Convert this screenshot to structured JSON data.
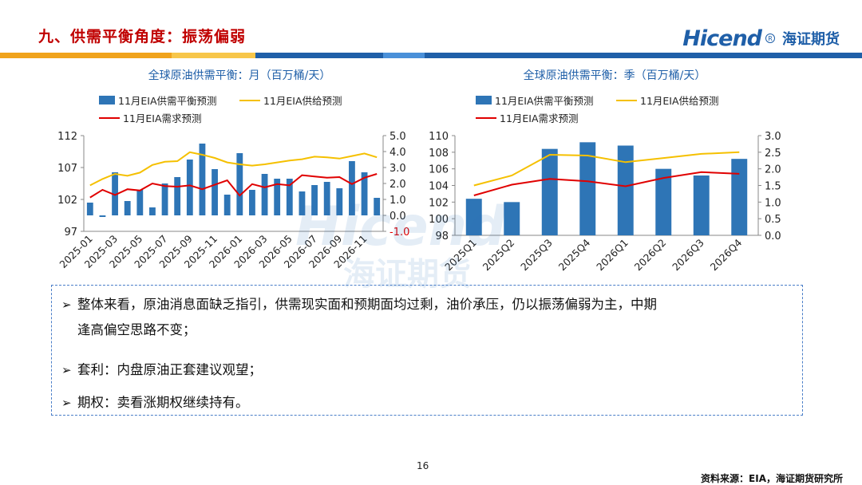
{
  "slide": {
    "title": "九、供需平衡角度：振荡偏弱",
    "logo_text": "Hicend",
    "logo_cn": "海证期货",
    "page_number": "16",
    "source": "资料来源：EIA，海证期货研究所",
    "header_colors": [
      "#f0a31c",
      "#f7c64a",
      "#1f5fa8",
      "#4a90d9",
      "#1f5fa8"
    ]
  },
  "chart_data": [
    {
      "type": "bar",
      "title": "全球原油供需平衡：月（百万桶/天）",
      "categories": [
        "2025-01",
        "2025-02",
        "2025-03",
        "2025-04",
        "2025-05",
        "2025-06",
        "2025-07",
        "2025-08",
        "2025-09",
        "2025-10",
        "2025-11",
        "2025-12",
        "2026-01",
        "2026-02",
        "2026-03",
        "2026-04",
        "2026-05",
        "2026-06",
        "2026-07",
        "2026-08",
        "2026-09",
        "2026-10",
        "2026-11",
        "2026-12"
      ],
      "tick_labels": [
        "2025-01",
        "2025-03",
        "2025-05",
        "2025-07",
        "2025-09",
        "2025-11",
        "2026-01",
        "2026-03",
        "2026-05",
        "2026-07",
        "2026-09",
        "2026-11"
      ],
      "ylim_left": [
        97,
        112
      ],
      "yticks_left": [
        "97",
        "102",
        "107",
        "112"
      ],
      "ylim_right": [
        -1.0,
        5.0
      ],
      "yticks_right": [
        "-1.0",
        "0.0",
        "1.0",
        "2.0",
        "3.0",
        "4.0",
        "5.0"
      ],
      "series": [
        {
          "name": "11月EIA供需平衡预测",
          "axis": "right",
          "type": "bar",
          "color": "#2e75b6",
          "values": [
            0.8,
            -0.1,
            2.7,
            0.9,
            1.6,
            0.5,
            2.0,
            2.4,
            3.5,
            4.5,
            2.9,
            1.3,
            3.9,
            1.6,
            2.6,
            2.3,
            2.3,
            1.5,
            1.9,
            2.1,
            1.7,
            3.4,
            2.7,
            1.1
          ]
        },
        {
          "name": "11月EIA供给预测",
          "axis": "left",
          "type": "line",
          "color": "#f5c000",
          "values": [
            104.2,
            105.2,
            106.0,
            105.7,
            106.2,
            107.4,
            107.9,
            108.0,
            109.4,
            109.0,
            108.5,
            107.8,
            107.5,
            107.3,
            107.5,
            107.8,
            108.1,
            108.3,
            108.7,
            108.6,
            108.4,
            108.8,
            109.2,
            108.6
          ]
        },
        {
          "name": "11月EIA需求预测",
          "axis": "left",
          "type": "line",
          "color": "#e00000",
          "values": [
            102.3,
            103.5,
            102.7,
            103.6,
            103.4,
            104.5,
            104.1,
            104.0,
            104.2,
            103.6,
            104.3,
            105.0,
            102.6,
            104.4,
            103.9,
            104.4,
            104.2,
            105.8,
            105.6,
            105.4,
            105.5,
            104.4,
            105.4,
            106.0
          ]
        }
      ]
    },
    {
      "type": "bar",
      "title": "全球原油供需平衡：季（百万桶/天）",
      "categories": [
        "2025Q1",
        "2025Q2",
        "2025Q3",
        "2025Q4",
        "2026Q1",
        "2026Q2",
        "2026Q3",
        "2026Q4"
      ],
      "tick_labels": [
        "2025Q1",
        "2025Q2",
        "2025Q3",
        "2025Q4",
        "2026Q1",
        "2026Q2",
        "2026Q3",
        "2026Q4"
      ],
      "ylim_left": [
        98,
        110
      ],
      "yticks_left": [
        "98",
        "100",
        "102",
        "104",
        "106",
        "108",
        "110"
      ],
      "ylim_right": [
        0.0,
        3.0
      ],
      "yticks_right": [
        "0.0",
        "0.5",
        "1.0",
        "1.5",
        "2.0",
        "2.5",
        "3.0"
      ],
      "series": [
        {
          "name": "11月EIA供需平衡预测",
          "axis": "right",
          "type": "bar",
          "color": "#2e75b6",
          "values": [
            1.1,
            1.0,
            2.6,
            2.8,
            2.7,
            2.0,
            1.8,
            2.3
          ]
        },
        {
          "name": "11月EIA供给预测",
          "axis": "left",
          "type": "line",
          "color": "#f5c000",
          "values": [
            104.0,
            105.2,
            107.7,
            107.6,
            106.8,
            107.3,
            107.8,
            108.0
          ]
        },
        {
          "name": "11月EIA需求预测",
          "axis": "left",
          "type": "line",
          "color": "#e00000",
          "values": [
            102.8,
            104.1,
            104.8,
            104.5,
            103.9,
            104.9,
            105.6,
            105.4
          ]
        }
      ]
    }
  ],
  "bullets": [
    {
      "text_line1": "整体来看，原油消息面缺乏指引，供需现实面和预期面均过剩，油价承压，仍以振荡偏弱为主，中期",
      "text_line2": "逢高偏空思路不变；"
    },
    {
      "text_line1": "套利：内盘原油正套建议观望；"
    },
    {
      "text_line1": "期权：卖看涨期权继续持有。"
    }
  ],
  "watermark": {
    "text": "Hicend",
    "text_cn": "海证期货"
  }
}
